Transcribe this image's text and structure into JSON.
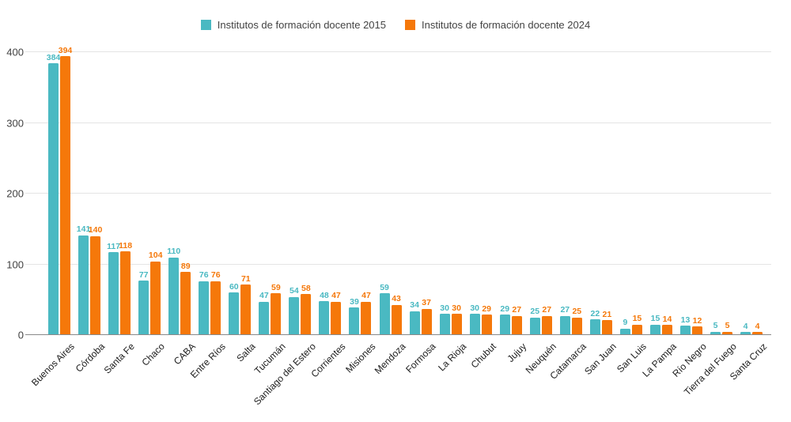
{
  "y_axis": {
    "ticks": [
      0,
      100,
      200,
      300,
      400
    ]
  },
  "chart_data": {
    "type": "bar",
    "title": "",
    "xlabel": "",
    "ylabel": "",
    "ylim": [
      0,
      400
    ],
    "grid": true,
    "legend_position": "top",
    "categories": [
      "Buenos Aires",
      "Córdoba",
      "Santa Fe",
      "Chaco",
      "CABA",
      "Entre Ríos",
      "Salta",
      "Tucumán",
      "Santiago del Estero",
      "Corrientes",
      "Misiones",
      "Mendoza",
      "Formosa",
      "La Rioja",
      "Chubut",
      "Jujuy",
      "Neuquén",
      "Catamarca",
      "San Juan",
      "San Luis",
      "La Pampa",
      "Río Negro",
      "Tierra del Fuego",
      "Santa Cruz"
    ],
    "series": [
      {
        "key": "2015",
        "name": "Institutos de formación docente 2015",
        "color": "#4ab9c2",
        "values": [
          384,
          141,
          117,
          77,
          110,
          76,
          60,
          47,
          54,
          48,
          39,
          59,
          34,
          30,
          30,
          29,
          25,
          27,
          22,
          9,
          15,
          13,
          5,
          4
        ]
      },
      {
        "key": "2024",
        "name": "Institutos de formación docente 2024",
        "color": "#f5780a",
        "values": [
          394,
          140,
          118,
          104,
          89,
          76,
          71,
          59,
          58,
          47,
          47,
          43,
          37,
          30,
          29,
          27,
          27,
          25,
          21,
          15,
          14,
          12,
          5,
          4
        ]
      }
    ]
  },
  "colors": {
    "gridline": "#e4e4e4",
    "baseline": "#8a8a8a",
    "axis_text": "#414141",
    "category_text": "#1c1c1c",
    "legend_text": "#434343"
  }
}
